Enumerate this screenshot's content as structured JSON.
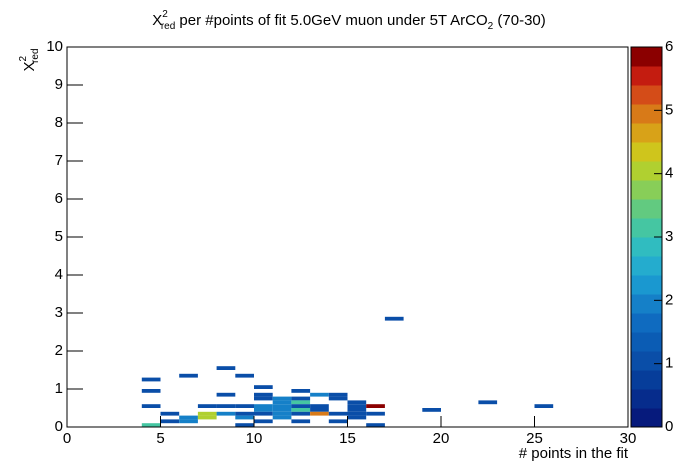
{
  "chart_data": {
    "type": "heatmap",
    "title": [
      "X",
      "2",
      "red",
      " per #points of fit 5.0GeV muon under 5T ArCO",
      "2",
      " (70-30)"
    ],
    "x_label": "# points in the fit",
    "y_label": [
      "X",
      "2",
      "red"
    ],
    "xlim": [
      0,
      30
    ],
    "xticks": [
      0,
      5,
      10,
      15,
      20,
      25,
      30
    ],
    "ylim": [
      0,
      10
    ],
    "yticks": [
      0,
      1,
      2,
      3,
      4,
      5,
      6,
      7,
      8,
      9,
      10
    ],
    "zlim": [
      0,
      6
    ],
    "zticks": [
      0,
      1,
      2,
      3,
      4,
      5,
      6
    ],
    "xbin_width": 1,
    "ybin_width": 0.1,
    "palette": [
      "#061a7c",
      "#062c8c",
      "#063d9a",
      "#0a4ea8",
      "#0b5cb4",
      "#0f6bc0",
      "#1580c8",
      "#1a98d0",
      "#24acce",
      "#30bcc0",
      "#45c6a2",
      "#62ca80",
      "#88ce58",
      "#b0d030",
      "#cfc51c",
      "#d8a218",
      "#d87a18",
      "#d44c18",
      "#c41c10",
      "#8b0000"
    ],
    "x": [
      17,
      4,
      6,
      9,
      8,
      10,
      4,
      12,
      8,
      10,
      13,
      14,
      10,
      11,
      12,
      14,
      11,
      12,
      15,
      22,
      4,
      7,
      8,
      9,
      10,
      11,
      12,
      13,
      15,
      16,
      25,
      10,
      11,
      12,
      13,
      15,
      19,
      5,
      7,
      8,
      9,
      10,
      11,
      12,
      13,
      14,
      15,
      16,
      6,
      7,
      9,
      11,
      15,
      5,
      6,
      10,
      12,
      14,
      4,
      9,
      16
    ],
    "y": [
      2.8,
      1.2,
      1.3,
      1.3,
      1.5,
      1.0,
      0.9,
      0.9,
      0.8,
      0.8,
      0.8,
      0.8,
      0.7,
      0.7,
      0.7,
      0.7,
      0.6,
      0.6,
      0.6,
      0.6,
      0.5,
      0.5,
      0.5,
      0.5,
      0.5,
      0.5,
      0.5,
      0.5,
      0.5,
      0.5,
      0.5,
      0.4,
      0.4,
      0.4,
      0.4,
      0.4,
      0.4,
      0.3,
      0.3,
      0.3,
      0.3,
      0.3,
      0.3,
      0.3,
      0.3,
      0.3,
      0.3,
      0.3,
      0.2,
      0.2,
      0.2,
      0.2,
      0.2,
      0.1,
      0.1,
      0.1,
      0.1,
      0.1,
      0,
      0,
      0
    ],
    "values": [
      1,
      1,
      1,
      1,
      1,
      1,
      1,
      1,
      1,
      1,
      2,
      1,
      1,
      2,
      1,
      1,
      2,
      3,
      1,
      1,
      1,
      1,
      1,
      1,
      2,
      2,
      1,
      1,
      1,
      6,
      1,
      2,
      2,
      3,
      1,
      1,
      1,
      1,
      4,
      2,
      1,
      1,
      2,
      1,
      5,
      1,
      1,
      1,
      2,
      4,
      2,
      2,
      1,
      1,
      2,
      1,
      1,
      1,
      3,
      1,
      1
    ]
  }
}
